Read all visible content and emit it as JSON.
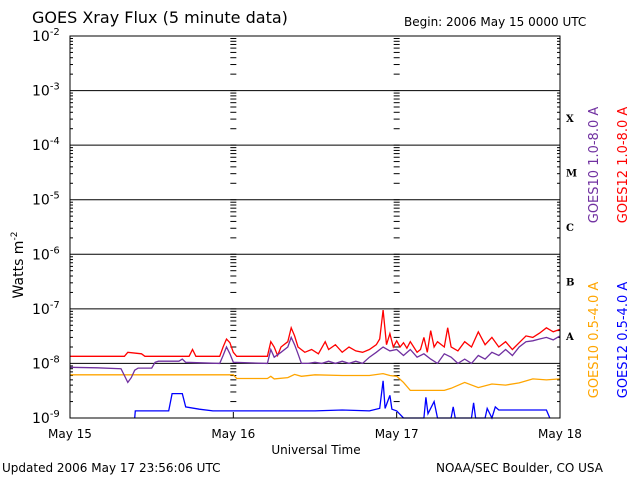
{
  "header": {
    "title": "GOES Xray Flux (5 minute data)",
    "begin": "Begin:  2006 May 15 0000 UTC"
  },
  "footer": {
    "updated": "Updated 2006 May 17 23:56:06 UTC",
    "credit": "NOAA/SEC Boulder, CO USA"
  },
  "chart_data": {
    "type": "line",
    "title": "GOES Xray Flux (5 minute data)",
    "xlabel": "Universal Time",
    "ylabel": "Watts m",
    "ylabel_superscript": "-2",
    "y_scale": "log",
    "ylim": [
      1e-09,
      0.01
    ],
    "xlim": [
      0,
      72
    ],
    "x_unit": "hours since 2006 May 15 0000 UTC",
    "x_ticks": [
      {
        "x": 0,
        "label": "May 15"
      },
      {
        "x": 24,
        "label": "May 16"
      },
      {
        "x": 48,
        "label": "May 17"
      },
      {
        "x": 72,
        "label": "May 18"
      }
    ],
    "y_ticks": [
      {
        "exp": -2,
        "base": "10",
        "sup": "-2"
      },
      {
        "exp": -3,
        "base": "10",
        "sup": "-3"
      },
      {
        "exp": -4,
        "base": "10",
        "sup": "-4"
      },
      {
        "exp": -5,
        "base": "10",
        "sup": "-5"
      },
      {
        "exp": -6,
        "base": "10",
        "sup": "-6"
      },
      {
        "exp": -7,
        "base": "10",
        "sup": "-7"
      },
      {
        "exp": -8,
        "base": "10",
        "sup": "-8"
      },
      {
        "exp": -9,
        "base": "10",
        "sup": "-9"
      }
    ],
    "flare_classes": [
      {
        "label": "X",
        "exp": -4
      },
      {
        "label": "M",
        "exp": -5
      },
      {
        "label": "C",
        "exp": -6
      },
      {
        "label": "B",
        "exp": -7
      },
      {
        "label": "A",
        "exp": -8
      }
    ],
    "legend_right": [
      {
        "text": "GOES10 1.0-8.0 A",
        "color": "#7030a0"
      },
      {
        "text": "GOES12 1.0-8.0 A",
        "color": "#ff0000"
      }
    ],
    "legend_left_bottom": [
      {
        "text": "GOES10 0.5-4.0 A",
        "color": "#ffa500"
      },
      {
        "text": "GOES12 0.5-4.0 A",
        "color": "#0000ff"
      }
    ],
    "series": [
      {
        "name": "GOES12 1.0-8.0 A",
        "color": "#ff0000",
        "points": [
          [
            0,
            1.35e-08
          ],
          [
            8,
            1.35e-08
          ],
          [
            8.5,
            1.6e-08
          ],
          [
            10.5,
            1.5e-08
          ],
          [
            11,
            1.35e-08
          ],
          [
            17.5,
            1.35e-08
          ],
          [
            18,
            1.8e-08
          ],
          [
            18.5,
            1.35e-08
          ],
          [
            22,
            1.35e-08
          ],
          [
            22.5,
            2e-08
          ],
          [
            23,
            2.8e-08
          ],
          [
            23.5,
            2.4e-08
          ],
          [
            24,
            1.6e-08
          ],
          [
            24.5,
            1.35e-08
          ],
          [
            29,
            1.35e-08
          ],
          [
            29.5,
            2.5e-08
          ],
          [
            30,
            2e-08
          ],
          [
            30.5,
            1.4e-08
          ],
          [
            31,
            2e-08
          ],
          [
            32,
            2.5e-08
          ],
          [
            32.5,
            4.5e-08
          ],
          [
            33,
            3.2e-08
          ],
          [
            33.5,
            2e-08
          ],
          [
            34.5,
            1.6e-08
          ],
          [
            35.5,
            1.8e-08
          ],
          [
            36.5,
            1.5e-08
          ],
          [
            37.5,
            2.5e-08
          ],
          [
            38,
            1.8e-08
          ],
          [
            39,
            2.2e-08
          ],
          [
            40,
            1.6e-08
          ],
          [
            41,
            2e-08
          ],
          [
            42,
            1.7e-08
          ],
          [
            43,
            1.6e-08
          ],
          [
            44,
            1.8e-08
          ],
          [
            45,
            2.2e-08
          ],
          [
            45.5,
            2.8e-08
          ],
          [
            46,
            9.5e-08
          ],
          [
            46.5,
            2.2e-08
          ],
          [
            47,
            3.5e-08
          ],
          [
            47.5,
            2e-08
          ],
          [
            48,
            2.6e-08
          ],
          [
            48.5,
            2e-08
          ],
          [
            49,
            2.4e-08
          ],
          [
            49.5,
            1.9e-08
          ],
          [
            50,
            2.5e-08
          ],
          [
            50.5,
            2e-08
          ],
          [
            51,
            1.6e-08
          ],
          [
            51.5,
            1.8e-08
          ],
          [
            52,
            3e-08
          ],
          [
            52.5,
            1.6e-08
          ],
          [
            53,
            4e-08
          ],
          [
            53.5,
            2e-08
          ],
          [
            54,
            2.5e-08
          ],
          [
            55,
            2e-08
          ],
          [
            55.5,
            4.5e-08
          ],
          [
            56,
            2e-08
          ],
          [
            57,
            1.7e-08
          ],
          [
            58,
            2.5e-08
          ],
          [
            59,
            2e-08
          ],
          [
            60,
            3.8e-08
          ],
          [
            61,
            2.2e-08
          ],
          [
            62,
            3e-08
          ],
          [
            63,
            2e-08
          ],
          [
            64,
            2.5e-08
          ],
          [
            65,
            1.8e-08
          ],
          [
            66,
            2.4e-08
          ],
          [
            67,
            3.2e-08
          ],
          [
            68,
            3e-08
          ],
          [
            69,
            3.6e-08
          ],
          [
            70,
            4.5e-08
          ],
          [
            71,
            3.8e-08
          ],
          [
            72,
            4.2e-08
          ]
        ]
      },
      {
        "name": "GOES10 1.0-8.0 A",
        "color": "#7030a0",
        "points": [
          [
            0,
            8.5e-09
          ],
          [
            4,
            8.3e-09
          ],
          [
            7.5,
            8e-09
          ],
          [
            8,
            6e-09
          ],
          [
            8.5,
            4.5e-09
          ],
          [
            9,
            5.5e-09
          ],
          [
            9.5,
            7.5e-09
          ],
          [
            10,
            8.2e-09
          ],
          [
            12,
            8.2e-09
          ],
          [
            12.5,
            1.05e-08
          ],
          [
            13,
            1.1e-08
          ],
          [
            16,
            1.1e-08
          ],
          [
            16.5,
            1.2e-08
          ],
          [
            17,
            1.05e-08
          ],
          [
            22,
            1e-08
          ],
          [
            22.5,
            1.4e-08
          ],
          [
            23,
            2e-08
          ],
          [
            23.5,
            1.5e-08
          ],
          [
            24,
            1.05e-08
          ],
          [
            29,
            1e-08
          ],
          [
            29.5,
            1.8e-08
          ],
          [
            30,
            1.3e-08
          ],
          [
            31,
            1.6e-08
          ],
          [
            32,
            2e-08
          ],
          [
            32.5,
            3e-08
          ],
          [
            33,
            2.2e-08
          ],
          [
            33.5,
            1.5e-08
          ],
          [
            34,
            1e-08
          ],
          [
            35,
            1e-08
          ],
          [
            36,
            1.05e-08
          ],
          [
            37,
            1e-08
          ],
          [
            38,
            1.1e-08
          ],
          [
            39,
            1e-08
          ],
          [
            40,
            1.1e-08
          ],
          [
            41,
            1e-08
          ],
          [
            42,
            1.1e-08
          ],
          [
            43,
            1e-08
          ],
          [
            44,
            1.3e-08
          ],
          [
            45,
            1.6e-08
          ],
          [
            46,
            2e-08
          ],
          [
            47,
            1.7e-08
          ],
          [
            48,
            1.8e-08
          ],
          [
            49,
            1.4e-08
          ],
          [
            50,
            1.8e-08
          ],
          [
            51,
            1.3e-08
          ],
          [
            52,
            1.5e-08
          ],
          [
            53,
            1.2e-08
          ],
          [
            54,
            1e-08
          ],
          [
            55,
            1.5e-08
          ],
          [
            56,
            1.3e-08
          ],
          [
            57,
            1e-08
          ],
          [
            58,
            1.2e-08
          ],
          [
            59,
            1e-08
          ],
          [
            60,
            1.4e-08
          ],
          [
            61,
            1.2e-08
          ],
          [
            62,
            1.6e-08
          ],
          [
            63,
            1.4e-08
          ],
          [
            64,
            1.8e-08
          ],
          [
            65,
            1.4e-08
          ],
          [
            66,
            2e-08
          ],
          [
            67,
            2.5e-08
          ],
          [
            68,
            2.6e-08
          ],
          [
            69,
            2.8e-08
          ],
          [
            70,
            3e-08
          ],
          [
            71,
            2.7e-08
          ],
          [
            72,
            3.2e-08
          ]
        ]
      },
      {
        "name": "GOES10 0.5-4.0 A",
        "color": "#ffa500",
        "points": [
          [
            0,
            6.2e-09
          ],
          [
            24,
            6.2e-09
          ],
          [
            24.5,
            5.3e-09
          ],
          [
            29,
            5.3e-09
          ],
          [
            29.5,
            5.8e-09
          ],
          [
            30,
            5.2e-09
          ],
          [
            32,
            5.5e-09
          ],
          [
            33,
            6.3e-09
          ],
          [
            34,
            5.8e-09
          ],
          [
            36,
            6.2e-09
          ],
          [
            40,
            6e-09
          ],
          [
            44,
            6e-09
          ],
          [
            46,
            6.5e-09
          ],
          [
            47,
            6e-09
          ],
          [
            48,
            5.8e-09
          ],
          [
            49,
            4.5e-09
          ],
          [
            50,
            3.2e-09
          ],
          [
            55,
            3.2e-09
          ],
          [
            56,
            3.5e-09
          ],
          [
            58,
            4.5e-09
          ],
          [
            60,
            3.6e-09
          ],
          [
            62,
            4.2e-09
          ],
          [
            64,
            4e-09
          ],
          [
            66,
            4.4e-09
          ],
          [
            68,
            5.2e-09
          ],
          [
            70,
            5e-09
          ],
          [
            72,
            5.2e-09
          ]
        ]
      },
      {
        "name": "GOES12 0.5-4.0 A",
        "color": "#0000ff",
        "points": [
          [
            9.5,
            1e-09
          ],
          [
            9.6,
            1.35e-09
          ],
          [
            14.5,
            1.35e-09
          ],
          [
            15,
            2.8e-09
          ],
          [
            16.5,
            2.8e-09
          ],
          [
            17,
            1.6e-09
          ],
          [
            19,
            1.45e-09
          ],
          [
            21,
            1.35e-09
          ],
          [
            30,
            1.35e-09
          ],
          [
            36,
            1.35e-09
          ],
          [
            40,
            1.4e-09
          ],
          [
            44,
            1.35e-09
          ],
          [
            45.5,
            1.5e-09
          ],
          [
            46,
            4.8e-09
          ],
          [
            46.3,
            1.5e-09
          ],
          [
            47,
            2.6e-09
          ],
          [
            47.3,
            1.45e-09
          ],
          [
            48,
            1.35e-09
          ],
          [
            49,
            1e-09
          ],
          [
            52,
            1e-09
          ],
          [
            52.3,
            2.4e-09
          ],
          [
            52.6,
            1.2e-09
          ],
          [
            53.5,
            2e-09
          ],
          [
            54,
            1e-09
          ],
          [
            56,
            1e-09
          ],
          [
            56.3,
            1.6e-09
          ],
          [
            56.6,
            1e-09
          ],
          [
            59,
            1e-09
          ],
          [
            59.3,
            1.9e-09
          ],
          [
            59.6,
            1e-09
          ],
          [
            61,
            1e-09
          ],
          [
            61.3,
            1.5e-09
          ],
          [
            62,
            1e-09
          ],
          [
            62.5,
            1.6e-09
          ],
          [
            63,
            1.4e-09
          ],
          [
            70,
            1.4e-09
          ],
          [
            70.5,
            1e-09
          ]
        ]
      }
    ]
  }
}
